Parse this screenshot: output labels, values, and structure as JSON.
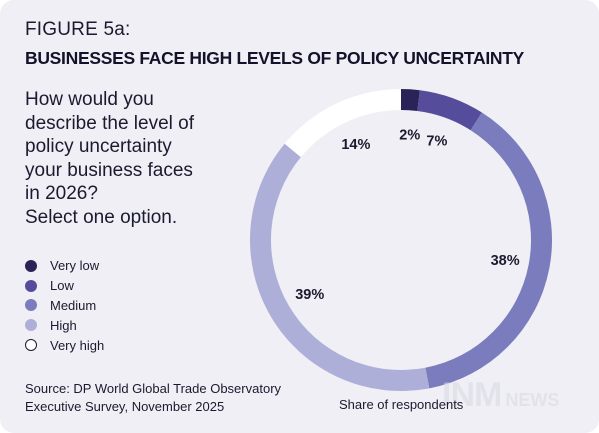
{
  "figure_label": "FIGURE 5a:",
  "title": "BUSINESSES FACE HIGH LEVELS OF POLICY UNCERTAINTY",
  "question_lines": [
    "How would you",
    "describe the level of",
    "policy uncertainty",
    "your business faces",
    "in 2026?",
    "Select one option."
  ],
  "source_lines": [
    "Source: DP World Global Trade Observatory",
    "Executive Survey, November 2025"
  ],
  "caption": "Share of respondents",
  "watermark": {
    "main": "INM",
    "sub": "NEWS"
  },
  "colors": {
    "very_low": "#2a2357",
    "low": "#554d9c",
    "medium": "#7b7cbd",
    "high": "#adafd9",
    "very_high": "#ffffff",
    "background": "#efeff5"
  },
  "chart_data": {
    "type": "pie",
    "donut": true,
    "categories": [
      "Very low",
      "Low",
      "Medium",
      "High",
      "Very high"
    ],
    "values": [
      2,
      7,
      38,
      39,
      14
    ],
    "value_labels": [
      "2%",
      "7%",
      "38%",
      "39%",
      "14%"
    ],
    "colors": [
      "#2a2357",
      "#554d9c",
      "#7b7cbd",
      "#adafd9",
      "#ffffff"
    ],
    "legend": "left",
    "caption": "Share of respondents"
  }
}
